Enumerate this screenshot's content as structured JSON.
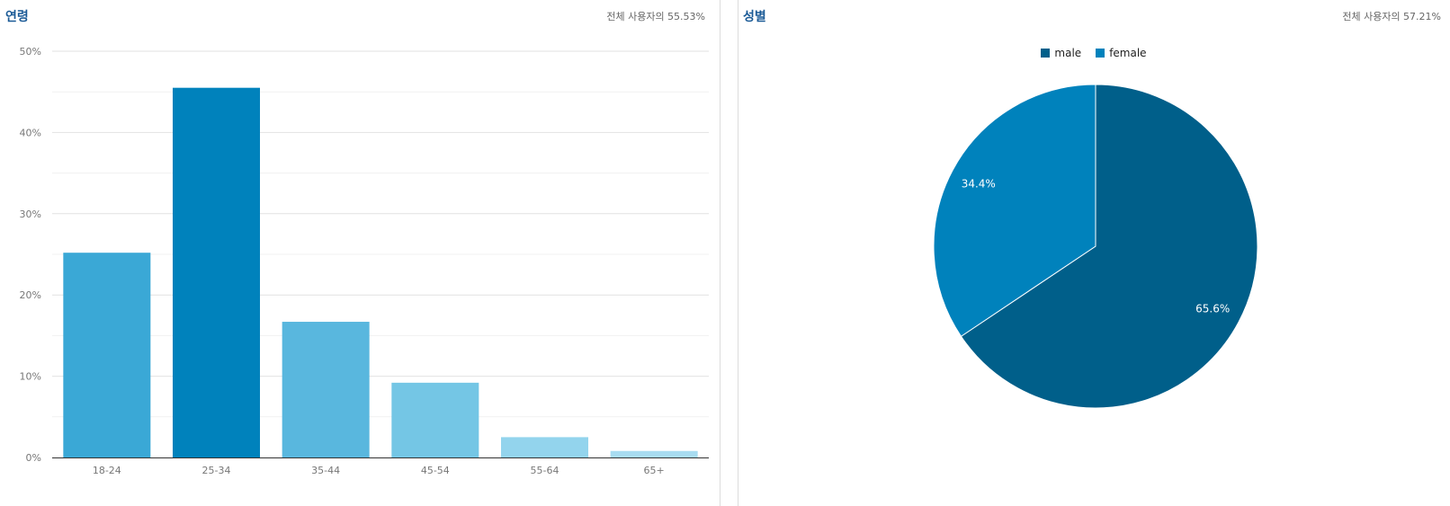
{
  "age_panel": {
    "title": "연령",
    "subtitle": "전체 사용자의 55.53%"
  },
  "gender_panel": {
    "title": "성별",
    "subtitle": "전체 사용자의 57.21%"
  },
  "chart_data": [
    {
      "type": "bar",
      "title": "연령",
      "categories": [
        "18-24",
        "25-34",
        "35-44",
        "45-54",
        "55-64",
        "65+"
      ],
      "values": [
        25.2,
        45.5,
        16.7,
        9.2,
        2.5,
        0.8
      ],
      "colors": [
        "#3aa8d6",
        "#0082bc",
        "#59b7de",
        "#74c6e5",
        "#93d4ed",
        "#a8dcf1"
      ],
      "ylim": [
        0,
        50
      ],
      "yticks": [
        0,
        10,
        20,
        30,
        40,
        50
      ],
      "ytick_labels": [
        "0%",
        "10%",
        "20%",
        "30%",
        "40%",
        "50%"
      ],
      "grid": true
    },
    {
      "type": "pie",
      "title": "성별",
      "categories": [
        "male",
        "female"
      ],
      "values": [
        65.6,
        34.4
      ],
      "labels": [
        "65.6%",
        "34.4%"
      ],
      "colors": [
        "#005f8a",
        "#0082bc"
      ],
      "legend": "top-center"
    }
  ]
}
